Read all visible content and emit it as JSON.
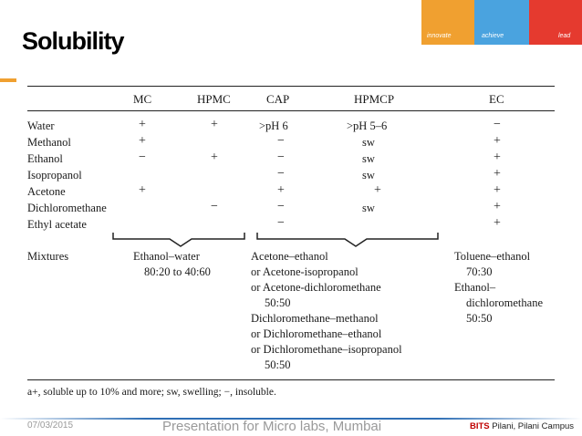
{
  "slide": {
    "title": "Solubility",
    "colors": {
      "accent_orange": "#f0a030",
      "accent_blue": "#4aa3df",
      "accent_red": "#e53a2f",
      "footer_blue": "#2f6fb5"
    }
  },
  "logo": {
    "words": [
      "innovate",
      "achieve",
      "lead"
    ]
  },
  "table": {
    "headers": [
      "MC",
      "HPMC",
      "CAP",
      "HPMCP",
      "EC"
    ],
    "rows": [
      {
        "solvent": "Water",
        "cells": [
          "+",
          "+",
          ">pH 6",
          ">pH 5–6",
          "−"
        ]
      },
      {
        "solvent": "Methanol",
        "cells": [
          "+",
          "",
          "−",
          "sw",
          "+"
        ]
      },
      {
        "solvent": "Ethanol",
        "cells": [
          "−",
          "+",
          "−",
          "sw",
          "+"
        ]
      },
      {
        "solvent": "Isopropanol",
        "cells": [
          "",
          "",
          "−",
          "sw",
          "+"
        ]
      },
      {
        "solvent": "Acetone",
        "cells": [
          "+",
          "",
          "+",
          "+",
          "+"
        ]
      },
      {
        "solvent": "Dichloromethane",
        "cells": [
          "",
          "−",
          "−",
          "sw",
          "+"
        ]
      },
      {
        "solvent": "Ethyl acetate",
        "cells": [
          "",
          "",
          "−",
          "",
          "+"
        ]
      }
    ],
    "mixtures": {
      "label": "Mixtures",
      "cellulose_ethers": [
        "Ethanol–water",
        "80:20 to 40:60"
      ],
      "phthalates": [
        "Acetone–ethanol",
        "or Acetone-isopropanol",
        "or Acetone-dichloromethane",
        "50:50",
        "Dichloromethane–methanol",
        "or Dichloromethane–ethanol",
        "or Dichloromethane–isopropanol",
        "50:50"
      ],
      "ec": [
        "Toluene–ethanol",
        "70:30",
        "Ethanol–",
        "dichloromethane",
        "50:50"
      ]
    },
    "footnote": "a+, soluble up to 10% and more; sw, swelling; −, insoluble."
  },
  "footer": {
    "date": "07/03/2015",
    "presentation": "Presentation for Micro labs, Mumbai",
    "bits_bold": "BITS",
    "bits_rest": " Pilani, Pilani Campus"
  }
}
